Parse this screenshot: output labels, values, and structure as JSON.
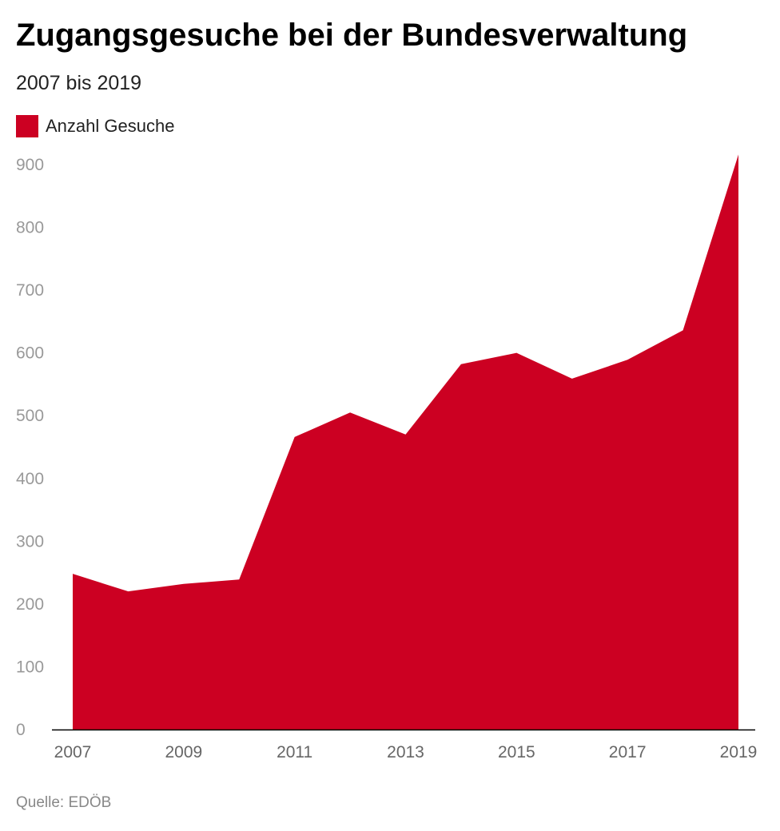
{
  "title": "Zugangsgesuche bei der Bundesverwaltung",
  "subtitle": "2007 bis 2019",
  "source": "Quelle: EDÖB",
  "colors": {
    "series": "#cc0022",
    "axis_text": "#999999",
    "x_text": "#666666"
  },
  "chart_data": {
    "type": "area",
    "title": "Zugangsgesuche bei der Bundesverwaltung",
    "xlabel": "",
    "ylabel": "",
    "x": [
      2007,
      2008,
      2009,
      2010,
      2011,
      2012,
      2013,
      2014,
      2015,
      2016,
      2017,
      2018,
      2019
    ],
    "series": [
      {
        "name": "Anzahl Gesuche",
        "values": [
          248,
          220,
          232,
          239,
          466,
          505,
          470,
          582,
          600,
          559,
          589,
          636,
          916
        ]
      }
    ],
    "ylim": [
      0,
      900
    ],
    "yticks": [
      "0",
      "100",
      "200",
      "300",
      "400",
      "500",
      "600",
      "700",
      "800",
      "900"
    ],
    "xticks": [
      "2007",
      "2009",
      "2011",
      "2013",
      "2015",
      "2017",
      "2019"
    ],
    "grid": false,
    "legend": "top-left"
  }
}
